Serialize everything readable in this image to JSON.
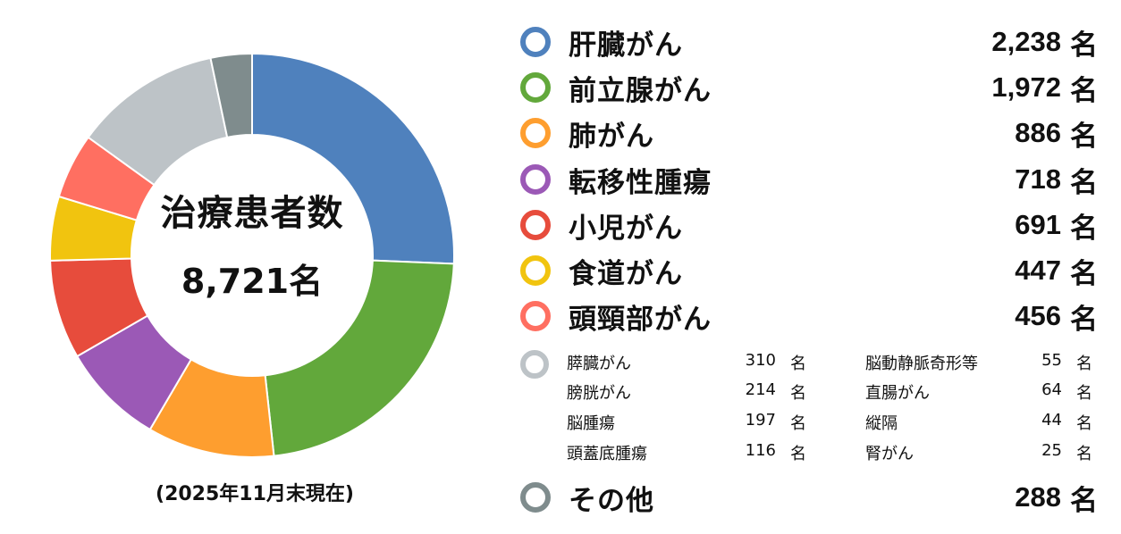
{
  "chart_data": {
    "type": "pie",
    "subtype": "donut",
    "title": "治療患者数",
    "total_label": "8,721名",
    "total": 8721,
    "unit": "名",
    "note": "(2025年11月末現在)",
    "start_angle": "12 o'clock, clockwise",
    "slices": [
      {
        "label": "肝臓がん",
        "value": 2238,
        "color": "#4F81BD"
      },
      {
        "label": "前立腺がん",
        "value": 1972,
        "color": "#62A83B"
      },
      {
        "label": "肺がん",
        "value": 886,
        "color": "#FE9E2F"
      },
      {
        "label": "転移性腫瘍",
        "value": 718,
        "color": "#9B59B6"
      },
      {
        "label": "小児がん",
        "value": 691,
        "color": "#E74C3C"
      },
      {
        "label": "食道がん",
        "value": 447,
        "color": "#F1C40F"
      },
      {
        "label": "頭頸部がん",
        "value": 456,
        "color": "#FF6F61"
      },
      {
        "label": "その他の部位（膵臓・膀胱・脳腫瘍 等）",
        "value": 1025,
        "color": "#BDC3C7"
      },
      {
        "label": "その他",
        "value": 288,
        "color": "#7F8C8D"
      }
    ]
  },
  "center": {
    "title": "治療患者数",
    "total": "8,721名"
  },
  "note": "(2025年11月末現在)",
  "legend": {
    "major": [
      {
        "label": "肝臓がん",
        "value": "2,238",
        "unit": "名",
        "color": "#4F81BD"
      },
      {
        "label": "前立腺がん",
        "value": "1,972",
        "unit": "名",
        "color": "#62A83B"
      },
      {
        "label": "肺がん",
        "value": "886",
        "unit": "名",
        "color": "#FE9E2F"
      },
      {
        "label": "転移性腫瘍",
        "value": "718",
        "unit": "名",
        "color": "#9B59B6"
      },
      {
        "label": "小児がん",
        "value": "691",
        "unit": "名",
        "color": "#E74C3C"
      },
      {
        "label": "食道がん",
        "value": "447",
        "unit": "名",
        "color": "#F1C40F"
      },
      {
        "label": "頭頸部がん",
        "value": "456",
        "unit": "名",
        "color": "#FF6F61"
      }
    ],
    "group": {
      "color": "#BDC3C7",
      "left": [
        {
          "label": "膵臓がん",
          "value": "310",
          "unit": "名"
        },
        {
          "label": "膀胱がん",
          "value": "214",
          "unit": "名"
        },
        {
          "label": "脳腫瘍",
          "value": "197",
          "unit": "名"
        },
        {
          "label": "頭蓋底腫瘍",
          "value": "116",
          "unit": "名"
        }
      ],
      "right": [
        {
          "label": "脳動静脈奇形等",
          "value": "55",
          "unit": "名"
        },
        {
          "label": "直腸がん",
          "value": "64",
          "unit": "名"
        },
        {
          "label": "縦隔",
          "value": "44",
          "unit": "名"
        },
        {
          "label": "腎がん",
          "value": "25",
          "unit": "名"
        }
      ]
    },
    "other": {
      "label": "その他",
      "value": "288",
      "unit": "名",
      "color": "#7F8C8D"
    }
  }
}
